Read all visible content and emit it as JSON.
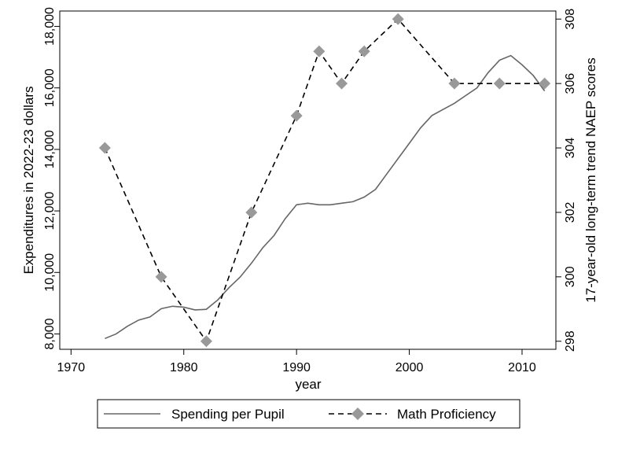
{
  "chart_data": {
    "type": "line",
    "title": "",
    "xlabel": "year",
    "ylabel_left": "Expenditures in 2022-23 dollars",
    "ylabel_right": "17-year-old long-term trend NAEP scores",
    "xlim": [
      1969,
      2013
    ],
    "ylim_left": [
      7500,
      18500
    ],
    "ylim_right": [
      297.75,
      308.25
    ],
    "xticks": [
      1970,
      1980,
      1990,
      2000,
      2010
    ],
    "yticks_left": [
      8000,
      10000,
      12000,
      14000,
      16000,
      18000
    ],
    "yticks_left_labels": [
      "8,000",
      "10,000",
      "12,000",
      "14,000",
      "16,000",
      "18,000"
    ],
    "yticks_right": [
      298,
      300,
      302,
      304,
      306,
      308
    ],
    "legend_position": "bottom",
    "grid": false,
    "series": [
      {
        "name": "Spending per Pupil",
        "axis": "left",
        "style": "solid",
        "color": "#666666",
        "x": [
          1973,
          1974,
          1975,
          1976,
          1977,
          1978,
          1979,
          1980,
          1981,
          1982,
          1983,
          1984,
          1985,
          1986,
          1987,
          1988,
          1989,
          1990,
          1991,
          1992,
          1993,
          1994,
          1995,
          1996,
          1997,
          1998,
          1999,
          2000,
          2001,
          2002,
          2003,
          2004,
          2005,
          2006,
          2007,
          2008,
          2009,
          2010,
          2011,
          2012
        ],
        "values": [
          7850,
          8000,
          8250,
          8450,
          8550,
          8820,
          8900,
          8870,
          8780,
          8800,
          9100,
          9500,
          9850,
          10300,
          10800,
          11200,
          11750,
          12200,
          12250,
          12200,
          12200,
          12250,
          12300,
          12450,
          12700,
          13200,
          13700,
          14200,
          14700,
          15100,
          15300,
          15500,
          15750,
          16000,
          16500,
          16900,
          17050,
          16750,
          16400,
          15900
        ]
      },
      {
        "name": "Math Proficiency",
        "axis": "right",
        "style": "dashed",
        "marker": "diamond",
        "color": "#000000",
        "marker_color": "#999999",
        "x": [
          1973,
          1978,
          1982,
          1986,
          1990,
          1992,
          1994,
          1996,
          1999,
          2004,
          2008,
          2012
        ],
        "values": [
          304,
          300,
          298,
          302,
          305,
          307,
          306,
          307,
          308,
          306,
          306,
          306
        ]
      }
    ]
  }
}
